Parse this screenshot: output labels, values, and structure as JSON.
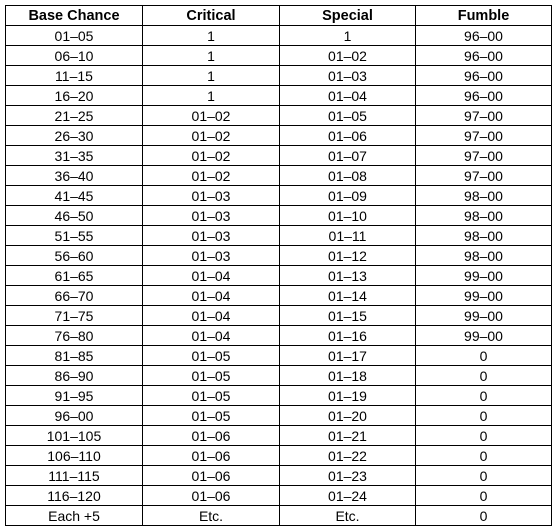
{
  "table": {
    "headers": [
      "Base Chance",
      "Critical",
      "Special",
      "Fumble"
    ],
    "rows": [
      [
        "01–05",
        "1",
        "1",
        "96–00"
      ],
      [
        "06–10",
        "1",
        "01–02",
        "96–00"
      ],
      [
        "11–15",
        "1",
        "01–03",
        "96–00"
      ],
      [
        "16–20",
        "1",
        "01–04",
        "96–00"
      ],
      [
        "21–25",
        "01–02",
        "01–05",
        "97–00"
      ],
      [
        "26–30",
        "01–02",
        "01–06",
        "97–00"
      ],
      [
        "31–35",
        "01–02",
        "01–07",
        "97–00"
      ],
      [
        "36–40",
        "01–02",
        "01–08",
        "97–00"
      ],
      [
        "41–45",
        "01–03",
        "01–09",
        "98–00"
      ],
      [
        "46–50",
        "01–03",
        "01–10",
        "98–00"
      ],
      [
        "51–55",
        "01–03",
        "01–11",
        "98–00"
      ],
      [
        "56–60",
        "01–03",
        "01–12",
        "98–00"
      ],
      [
        "61–65",
        "01–04",
        "01–13",
        "99–00"
      ],
      [
        "66–70",
        "01–04",
        "01–14",
        "99–00"
      ],
      [
        "71–75",
        "01–04",
        "01–15",
        "99–00"
      ],
      [
        "76–80",
        "01–04",
        "01–16",
        "99–00"
      ],
      [
        "81–85",
        "01–05",
        "01–17",
        "0"
      ],
      [
        "86–90",
        "01–05",
        "01–18",
        "0"
      ],
      [
        "91–95",
        "01–05",
        "01–19",
        "0"
      ],
      [
        "96–00",
        "01–05",
        "01–20",
        "0"
      ],
      [
        "101–105",
        "01–06",
        "01–21",
        "0"
      ],
      [
        "106–110",
        "01–06",
        "01–22",
        "0"
      ],
      [
        "111–115",
        "01–06",
        "01–23",
        "0"
      ],
      [
        "116–120",
        "01–06",
        "01–24",
        "0"
      ],
      [
        "Each +5",
        "Etc.",
        "Etc.",
        "0"
      ]
    ]
  }
}
